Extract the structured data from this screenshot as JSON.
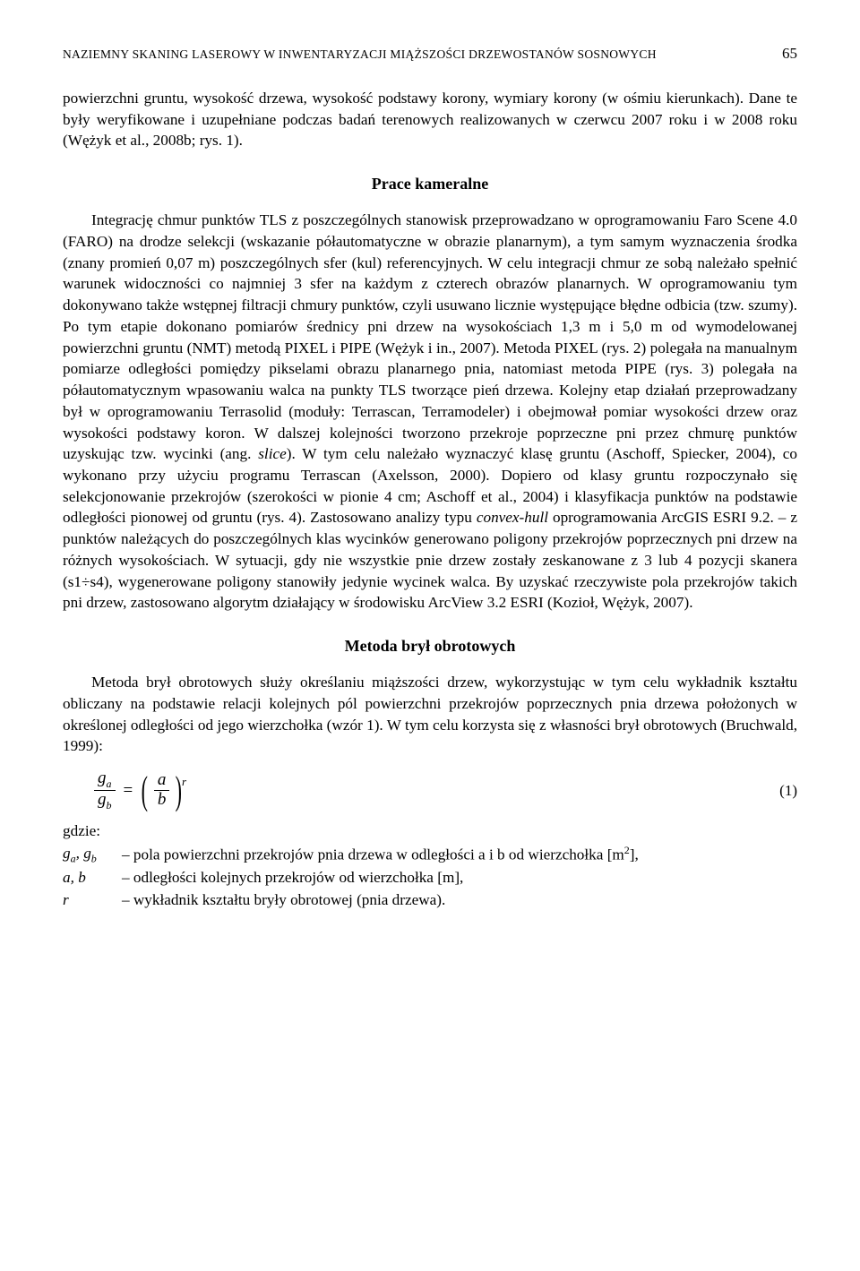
{
  "header": {
    "running_title": "NAZIEMNY SKANING LASEROWY W INWENTARYZACJI MIĄŻSZOŚCI DRZEWOSTANÓW SOSNOWYCH",
    "page_number": "65"
  },
  "intro_paragraph": "powierzchni gruntu, wysokość drzewa, wysokość podstawy korony, wymiary korony (w ośmiu kierunkach). Dane te były weryfikowane i uzupełniane podczas badań terenowych realizowanych w czerwcu 2007 roku i w 2008 roku (Wężyk et al., 2008b; rys. 1).",
  "section1": {
    "heading": "Prace kameralne",
    "p1a": "Integrację chmur punktów TLS z poszczególnych stanowisk przeprowadzano w oprogramowaniu Faro Scene 4.0 (FARO) na drodze selekcji (wskazanie półautomatyczne w obrazie planarnym), a tym samym wyznaczenia środka (znany promień 0,07 m) poszczególnych sfer (kul) referencyjnych. W celu integracji chmur ze sobą należało spełnić warunek widoczności co najmniej 3 sfer na każdym z czterech obrazów planarnych. W oprogramowaniu tym dokonywano także wstępnej filtracji chmury punktów, czyli usuwano licznie występujące błędne odbicia (tzw. szumy). Po tym etapie dokonano pomiarów średnicy pni drzew na wysokościach 1,3 m i 5,0 m od wymodelowanej powierzchni gruntu (NMT) metodą PIXEL i PIPE (Wężyk i in., 2007). Metoda PIXEL (rys. 2) polegała na manualnym pomiarze odległości pomiędzy pikselami obrazu planarnego pnia, natomiast metoda PIPE (rys. 3) polegała na półautomatycznym wpasowaniu walca na punkty TLS tworzące pień drzewa. Kolejny etap działań przeprowadzany był w oprogramowaniu Terrasolid (moduły: Terrascan, Terramodeler) i obejmował pomiar wysokości drzew oraz wysokości podstawy koron. W dalszej kolejności tworzono przekroje poprzeczne pni przez chmurę punktów uzyskując tzw. wycinki (ang. ",
    "p1_italic1": "slice",
    "p1b": "). W tym celu należało wyznaczyć klasę gruntu (Aschoff, Spiecker, 2004), co wykonano przy użyciu programu Terrascan (Axelsson, 2000). Dopiero od klasy gruntu rozpoczynało się selekcjonowanie przekrojów (szerokości w pionie 4 cm; Aschoff et al., 2004) i klasyfikacja punktów na podstawie odległości pionowej od gruntu (rys. 4). Zastosowano analizy typu ",
    "p1_italic2": "convex-hull",
    "p1c": " oprogramowania ArcGIS ESRI 9.2. – z punktów należących do poszczególnych klas wycinków generowano poligony przekrojów poprzecznych pni drzew na różnych wysokościach. W sytuacji, gdy nie wszystkie pnie drzew zostały zeskanowane z 3 lub 4 pozycji skanera (s1÷s4), wygenerowane poligony stanowiły jedynie wycinek walca. By uzyskać rzeczywiste pola przekrojów takich pni drzew, zastosowano algorytm działający w środowisku ArcView 3.2 ESRI (Kozioł, Wężyk, 2007)."
  },
  "section2": {
    "heading": "Metoda brył obrotowych",
    "p1": "Metoda brył obrotowych służy określaniu miąższości drzew, wykorzystując w tym celu wykładnik kształtu obliczany na podstawie relacji kolejnych pól powierzchni przekrojów poprzecznych pnia drzewa położonych w określonej odległości od jego wierzchołka (wzór 1). W tym celu korzysta się z własności brył obrotowych (Bruchwald, 1999):",
    "formula": {
      "lhs_num": "g",
      "lhs_num_sub": "a",
      "lhs_den": "g",
      "lhs_den_sub": "b",
      "rhs_num": "a",
      "rhs_den": "b",
      "exponent": "r",
      "eq_number": "(1)"
    },
    "where_label": "gdzie:",
    "defs": [
      {
        "sym_html": "g<sub>a</sub>, g<sub>b</sub>",
        "desc_pre": " – pola powierzchni przekrojów pnia drzewa w odległości a i b od wierzchołka [m",
        "desc_sup": "2",
        "desc_post": "],"
      },
      {
        "sym_html": "a, b",
        "desc_pre": " – odległości kolejnych przekrojów od wierzchołka [m],",
        "desc_sup": "",
        "desc_post": ""
      },
      {
        "sym_html": "r",
        "desc_pre": " – wykładnik kształtu bryły obrotowej (pnia drzewa).",
        "desc_sup": "",
        "desc_post": ""
      }
    ]
  }
}
